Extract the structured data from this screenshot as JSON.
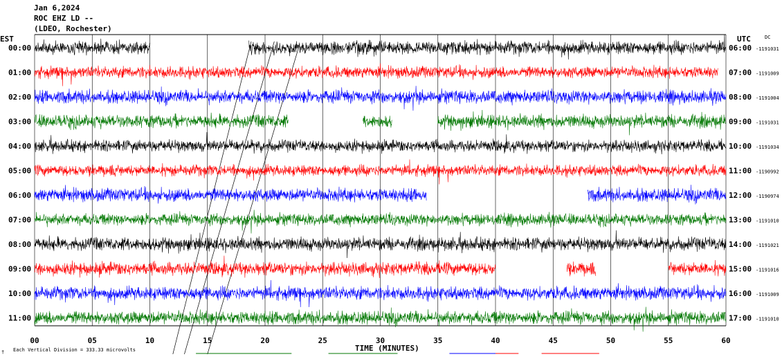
{
  "header": {
    "date": "Jan 6,2024",
    "station": "ROC EHZ LD --",
    "network": "(LDEO, Rochester)"
  },
  "left_tz": "EST",
  "right_tz": "UTC",
  "dc_label": "DC",
  "scale_note": "Each Vertical Division =  333.33 microvolts",
  "corner_mark": "†",
  "colors": {
    "black": "#000000",
    "red": "#ff0000",
    "blue": "#0000ff",
    "green": "#007700"
  },
  "chart_data": {
    "type": "line",
    "title": "",
    "xlabel": "TIME (MINUTES)",
    "ylabel": "",
    "xlim": [
      0,
      60
    ],
    "x_ticks": [
      "00",
      "05",
      "10",
      "15",
      "20",
      "25",
      "30",
      "35",
      "40",
      "45",
      "50",
      "55",
      "60"
    ],
    "grid": true,
    "series": [
      {
        "est": "00:00",
        "utc": "06:00",
        "dc": "-1191031",
        "color": "black",
        "amplitude": 0.45,
        "segments": [
          [
            0,
            10
          ],
          [
            18.6,
            60
          ]
        ]
      },
      {
        "est": "01:00",
        "utc": "07:00",
        "dc": "-1191009",
        "color": "red",
        "amplitude": 0.4,
        "segments": [
          [
            0,
            59.3
          ]
        ]
      },
      {
        "est": "02:00",
        "utc": "08:00",
        "dc": "-1191004",
        "color": "blue",
        "amplitude": 0.45,
        "segments": [
          [
            0,
            60
          ]
        ]
      },
      {
        "est": "03:00",
        "utc": "09:00",
        "dc": "-1191031",
        "color": "green",
        "amplitude": 0.45,
        "segments": [
          [
            0,
            22
          ],
          [
            28.5,
            31
          ],
          [
            35,
            60
          ]
        ]
      },
      {
        "est": "04:00",
        "utc": "10:00",
        "dc": "-1191034",
        "color": "black",
        "amplitude": 0.4,
        "segments": [
          [
            0,
            60
          ]
        ]
      },
      {
        "est": "05:00",
        "utc": "11:00",
        "dc": "-1190992",
        "color": "red",
        "amplitude": 0.38,
        "segments": [
          [
            0,
            60
          ]
        ]
      },
      {
        "est": "06:00",
        "utc": "12:00",
        "dc": "-1190974",
        "color": "blue",
        "amplitude": 0.45,
        "segments": [
          [
            0,
            34
          ],
          [
            48,
            60
          ]
        ]
      },
      {
        "est": "07:00",
        "utc": "13:00",
        "dc": "-1191010",
        "color": "green",
        "amplitude": 0.4,
        "segments": [
          [
            0,
            60
          ]
        ]
      },
      {
        "est": "08:00",
        "utc": "14:00",
        "dc": "-1191021",
        "color": "black",
        "amplitude": 0.45,
        "segments": [
          [
            0,
            60
          ]
        ]
      },
      {
        "est": "09:00",
        "utc": "15:00",
        "dc": "-1191016",
        "color": "red",
        "amplitude": 0.45,
        "segments": [
          [
            0,
            40
          ],
          [
            46.2,
            48.7
          ],
          [
            55,
            60
          ]
        ]
      },
      {
        "est": "10:00",
        "utc": "16:00",
        "dc": "-1191009",
        "color": "blue",
        "amplitude": 0.45,
        "segments": [
          [
            0,
            60
          ]
        ]
      },
      {
        "est": "11:00",
        "utc": "17:00",
        "dc": "-1191010",
        "color": "green",
        "amplitude": 0.45,
        "segments": [
          [
            0,
            60
          ]
        ]
      }
    ]
  }
}
